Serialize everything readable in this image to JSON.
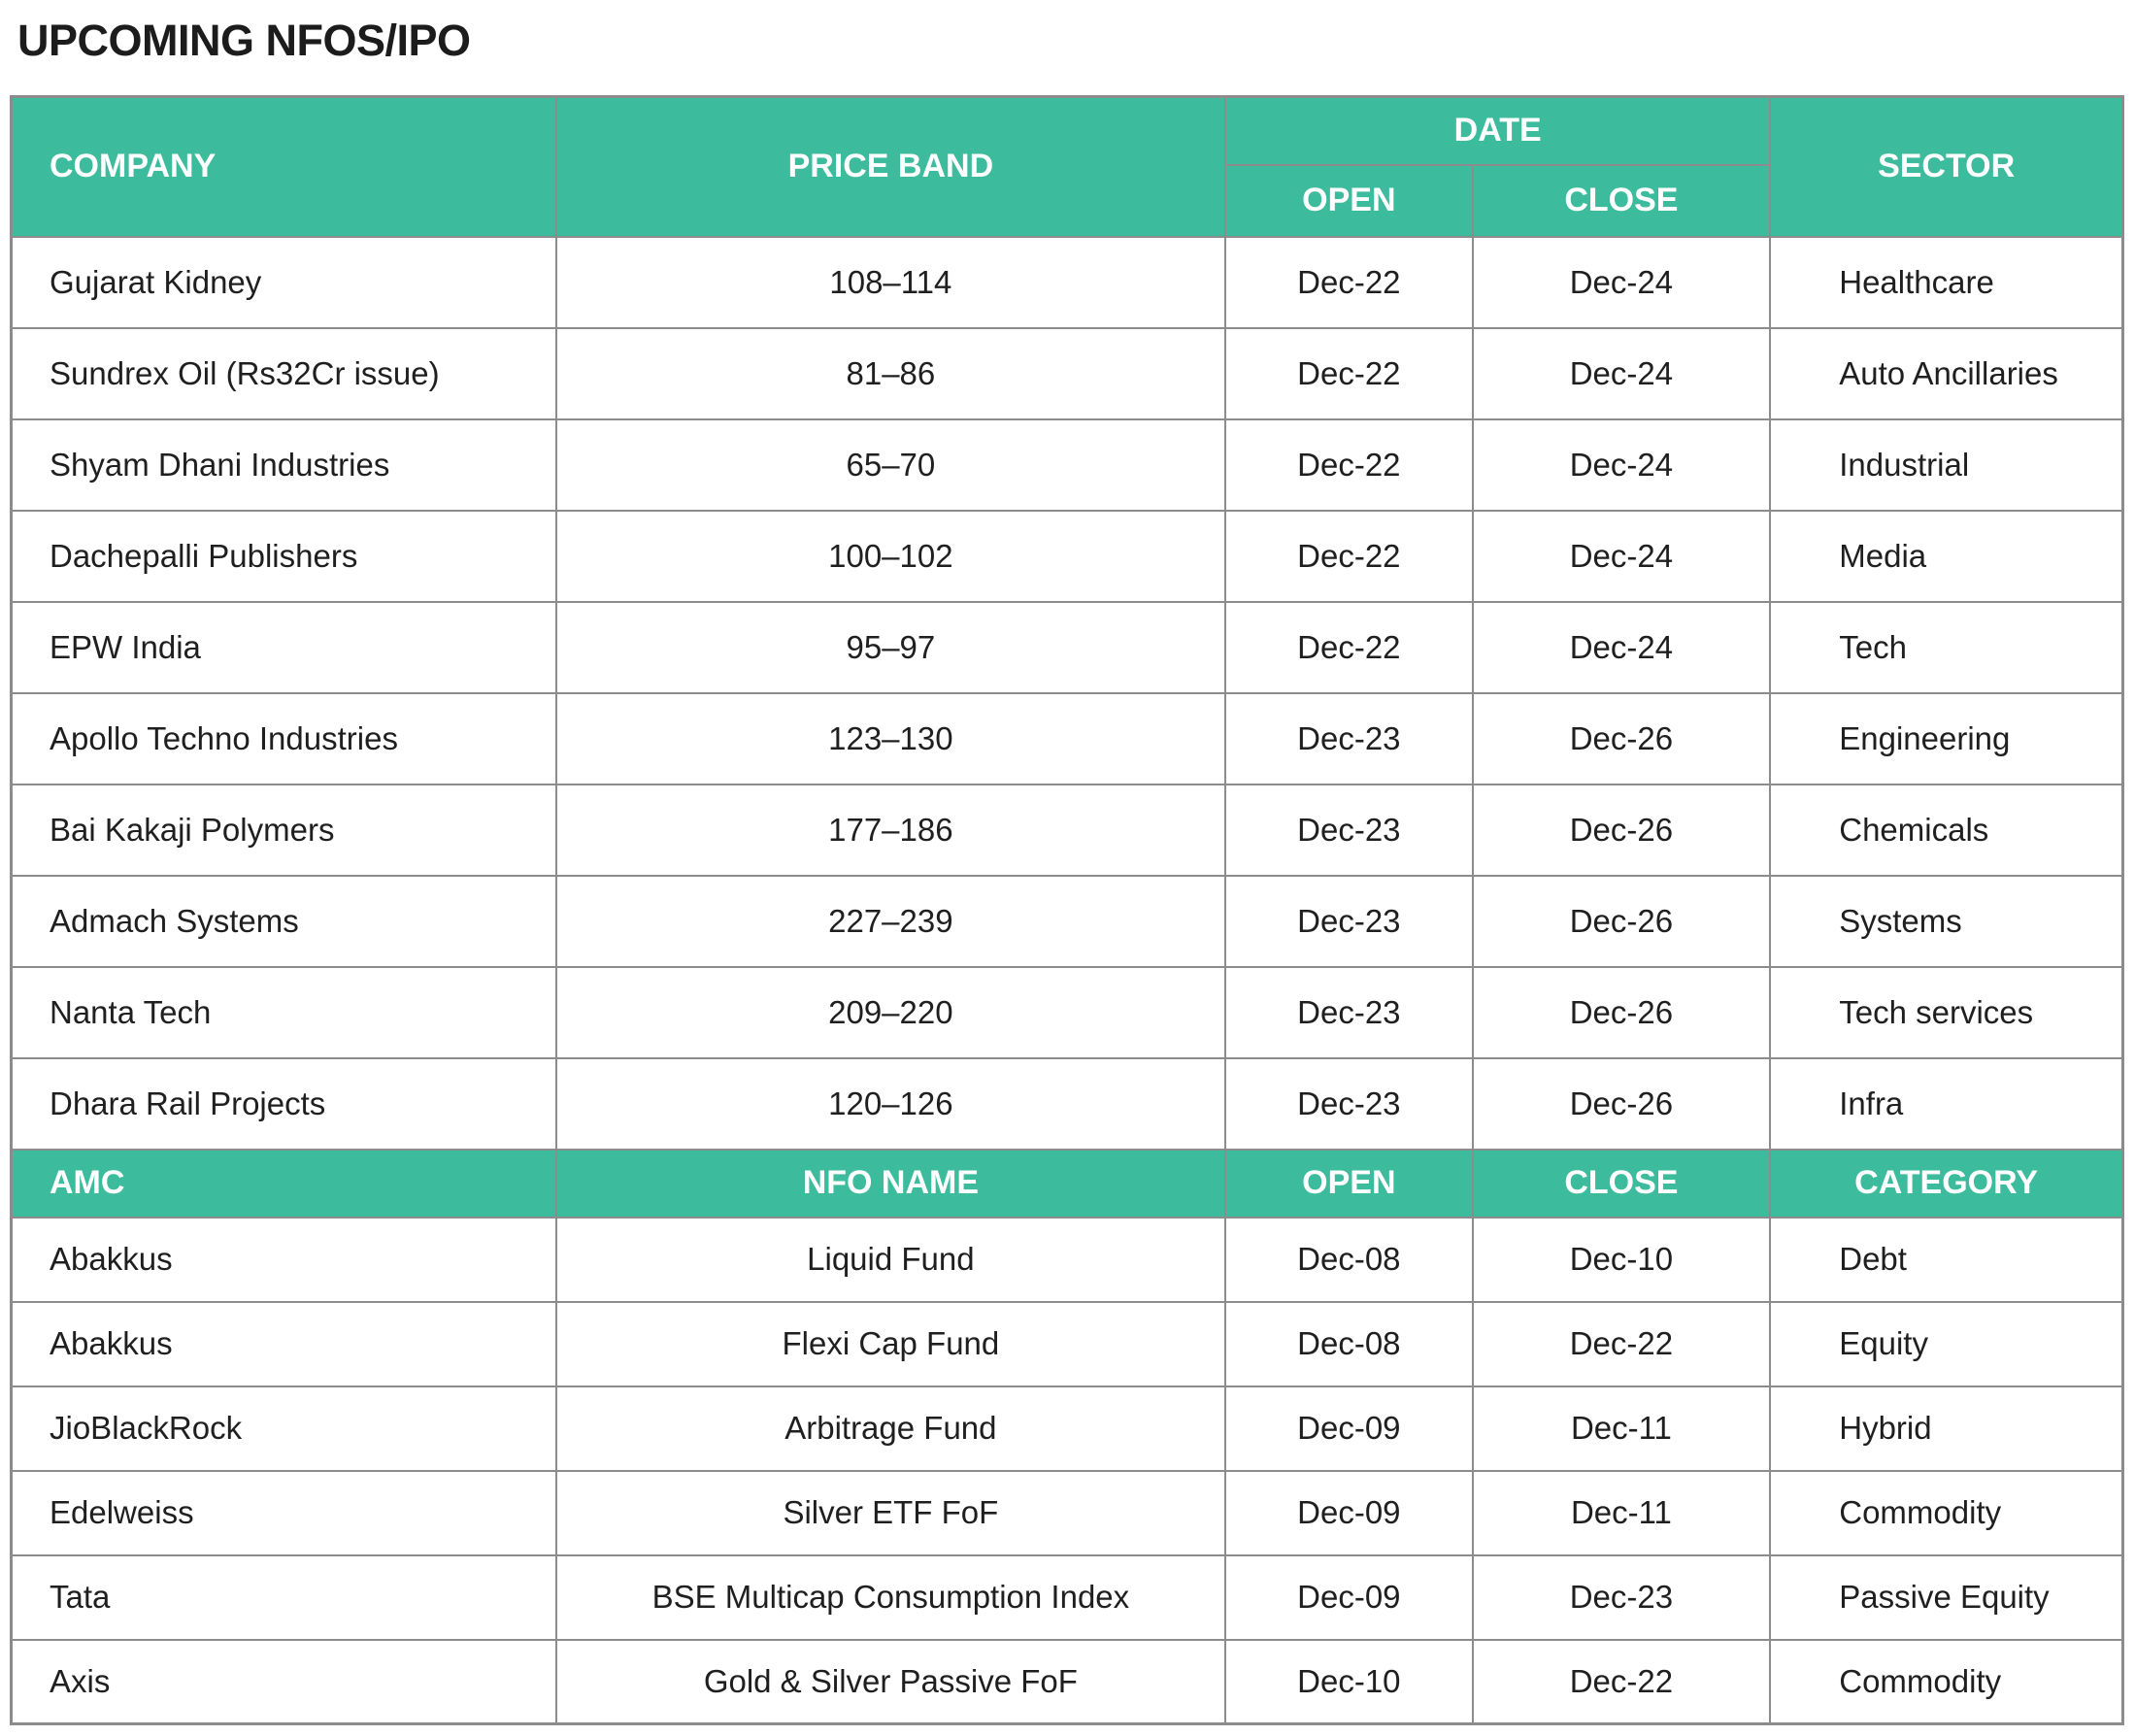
{
  "title": "UPCOMING NFOS/IPO",
  "colors": {
    "header_bg": "#3DBC9D",
    "header_text": "#FFFFFF",
    "body_text": "#1F1F1F",
    "border": "#8C8C8C",
    "title": "#1C1C1C",
    "page_bg": "#FFFFFF"
  },
  "ipo": {
    "headers": {
      "company": "COMPANY",
      "price_band": "PRICE BAND",
      "date": "DATE",
      "open": "OPEN",
      "close": "CLOSE",
      "sector": "SECTOR"
    },
    "rows": [
      {
        "company": "Gujarat Kidney",
        "price_band": "108–114",
        "open": "Dec-22",
        "close": "Dec-24",
        "sector": "Healthcare"
      },
      {
        "company": "Sundrex Oil (Rs32Cr issue)",
        "price_band": "81–86",
        "open": "Dec-22",
        "close": "Dec-24",
        "sector": "Auto Ancillaries"
      },
      {
        "company": "Shyam Dhani Industries",
        "price_band": "65–70",
        "open": "Dec-22",
        "close": "Dec-24",
        "sector": "Industrial"
      },
      {
        "company": "Dachepalli Publishers",
        "price_band": "100–102",
        "open": "Dec-22",
        "close": "Dec-24",
        "sector": "Media"
      },
      {
        "company": "EPW India",
        "price_band": "95–97",
        "open": "Dec-22",
        "close": "Dec-24",
        "sector": "Tech"
      },
      {
        "company": "Apollo Techno Industries",
        "price_band": "123–130",
        "open": "Dec-23",
        "close": "Dec-26",
        "sector": "Engineering"
      },
      {
        "company": "Bai Kakaji Polymers",
        "price_band": "177–186",
        "open": "Dec-23",
        "close": "Dec-26",
        "sector": "Chemicals"
      },
      {
        "company": "Admach Systems",
        "price_band": "227–239",
        "open": "Dec-23",
        "close": "Dec-26",
        "sector": "Systems"
      },
      {
        "company": "Nanta Tech",
        "price_band": "209–220",
        "open": "Dec-23",
        "close": "Dec-26",
        "sector": "Tech services"
      },
      {
        "company": "Dhara Rail Projects",
        "price_band": "120–126",
        "open": "Dec-23",
        "close": "Dec-26",
        "sector": "Infra"
      }
    ]
  },
  "nfo": {
    "headers": {
      "amc": "AMC",
      "nfo_name": "NFO NAME",
      "open": "OPEN",
      "close": "CLOSE",
      "category": "CATEGORY"
    },
    "rows": [
      {
        "amc": "Abakkus",
        "nfo_name": "Liquid Fund",
        "open": "Dec-08",
        "close": "Dec-10",
        "category": "Debt"
      },
      {
        "amc": "Abakkus",
        "nfo_name": "Flexi Cap Fund",
        "open": "Dec-08",
        "close": "Dec-22",
        "category": "Equity"
      },
      {
        "amc": "JioBlackRock",
        "nfo_name": "Arbitrage Fund",
        "open": "Dec-09",
        "close": "Dec-11",
        "category": "Hybrid"
      },
      {
        "amc": "Edelweiss",
        "nfo_name": "Silver ETF FoF",
        "open": "Dec-09",
        "close": "Dec-11",
        "category": "Commodity"
      },
      {
        "amc": "Tata",
        "nfo_name": "BSE Multicap Consumption Index",
        "open": "Dec-09",
        "close": "Dec-23",
        "category": "Passive Equity"
      },
      {
        "amc": "Axis",
        "nfo_name": "Gold & Silver Passive FoF",
        "open": "Dec-10",
        "close": "Dec-22",
        "category": "Commodity"
      }
    ]
  }
}
